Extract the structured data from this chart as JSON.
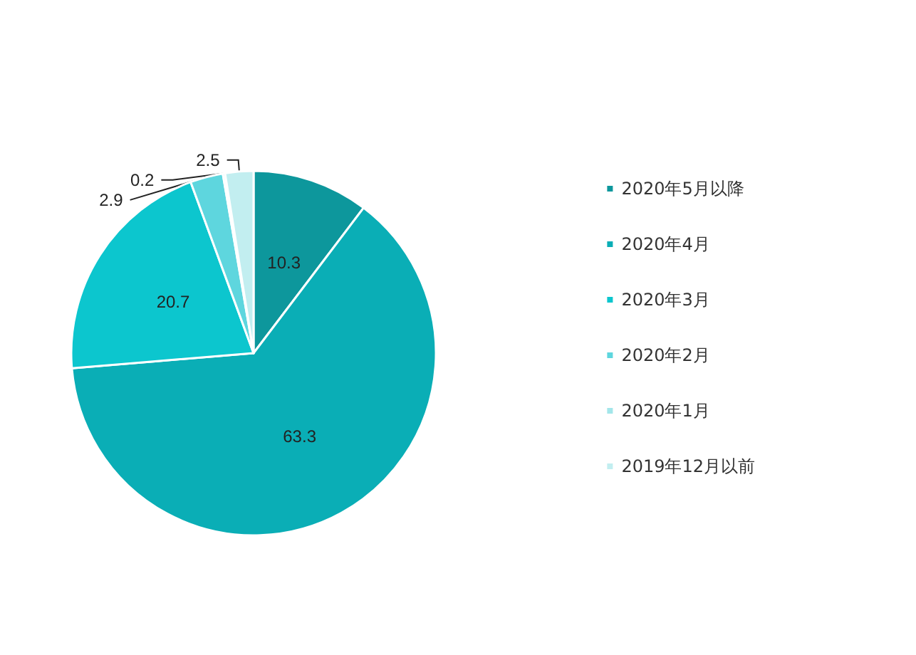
{
  "chart_data": {
    "type": "pie",
    "categories": [
      "2020年5月以降",
      "2020年4月",
      "2020年3月",
      "2020年2月",
      "2020年1月",
      "2019年12月以前"
    ],
    "values": [
      10.3,
      63.3,
      20.7,
      2.9,
      0.2,
      2.5
    ],
    "colors": [
      "#0d979c",
      "#0aaeb6",
      "#0cc6ce",
      "#5ed6de",
      "#a3e6ea",
      "#c2eef0"
    ],
    "data_labels": true,
    "legend": "right"
  }
}
